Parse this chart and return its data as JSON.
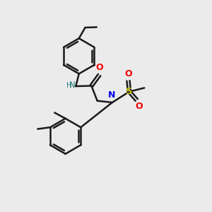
{
  "background_color": "#ebebeb",
  "bond_color": "#1a1a1a",
  "N_color": "#0000ee",
  "NH_color": "#2f8080",
  "O_color": "#ee0000",
  "S_color": "#bbbb00",
  "line_width": 1.8,
  "figsize": [
    3.0,
    3.0
  ],
  "dpi": 100,
  "xlim": [
    0,
    10
  ],
  "ylim": [
    0,
    10
  ]
}
